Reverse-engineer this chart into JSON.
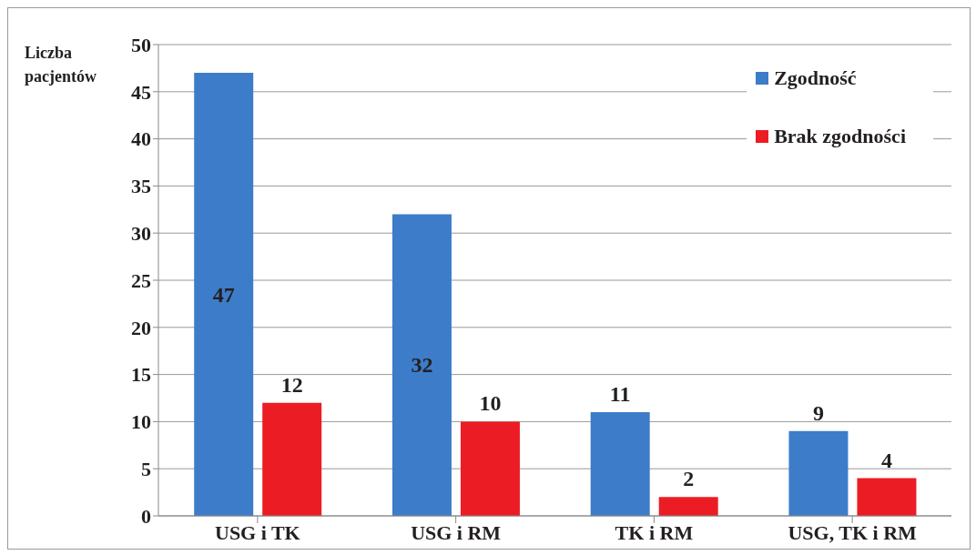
{
  "chart_data": {
    "type": "bar",
    "ylabel": "Liczba pacjentów",
    "categories": [
      "USG i TK",
      "USG i RM",
      "TK i RM",
      "USG, TK i RM"
    ],
    "series": [
      {
        "name": "Zgodność",
        "color": "#3d7cc9",
        "values": [
          47,
          32,
          11,
          9
        ]
      },
      {
        "name": "Brak zgodności",
        "color": "#ec1c24",
        "values": [
          12,
          10,
          2,
          4
        ]
      }
    ],
    "ylim": [
      0,
      50
    ],
    "yticks": [
      0,
      5,
      10,
      15,
      20,
      25,
      30,
      35,
      40,
      45,
      50
    ],
    "grid": "y",
    "legend": "top right",
    "data_labels": true
  }
}
